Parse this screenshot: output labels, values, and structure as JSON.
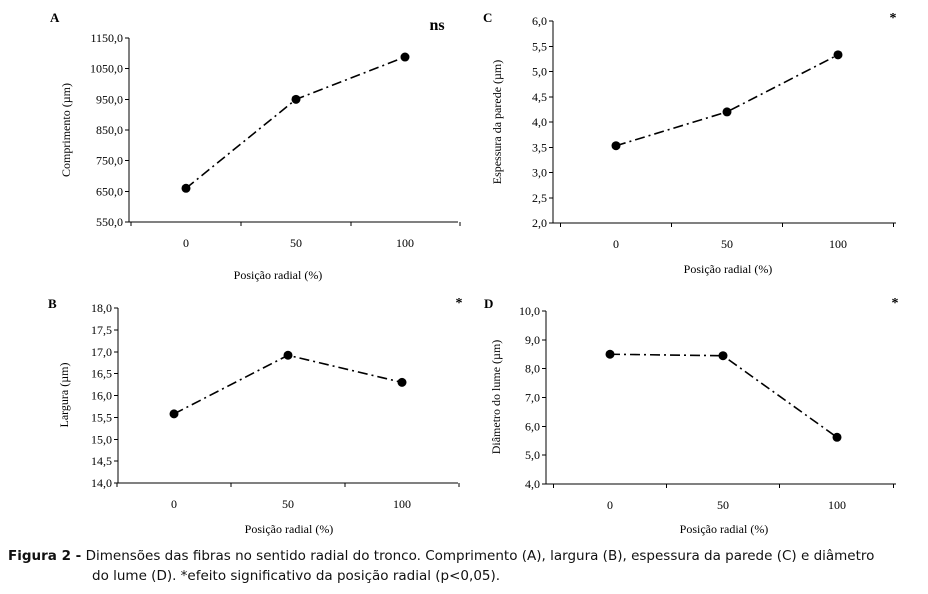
{
  "chart_data": [
    {
      "panel": "A",
      "type": "line",
      "significance": "ns",
      "x": [
        "0",
        "50",
        "100"
      ],
      "y_ticks": [
        "550,0",
        "650,0",
        "750,0",
        "850,0",
        "950,0",
        "1050,0",
        "1150,0"
      ],
      "ylim": [
        550,
        1150
      ],
      "values": [
        660,
        950,
        1088
      ],
      "xlabel": "Posição radial (%)",
      "ylabel": "Comprimento (µm)"
    },
    {
      "panel": "B",
      "type": "line",
      "significance": "*",
      "x": [
        "0",
        "50",
        "100"
      ],
      "y_ticks": [
        "14,0",
        "14,5",
        "15,0",
        "15,5",
        "16,0",
        "16,5",
        "17,0",
        "17,5",
        "18,0"
      ],
      "ylim": [
        14,
        18
      ],
      "values": [
        15.58,
        16.92,
        16.3
      ],
      "xlabel": "Posição radial (%)",
      "ylabel": "Largura (µm)"
    },
    {
      "panel": "C",
      "type": "line",
      "significance": "*",
      "x": [
        "0",
        "50",
        "100"
      ],
      "y_ticks": [
        "2,0",
        "2,5",
        "3,0",
        "3,5",
        "4,0",
        "4,5",
        "5,0",
        "5,5",
        "6,0"
      ],
      "ylim": [
        2,
        6
      ],
      "values": [
        3.53,
        4.2,
        5.33
      ],
      "xlabel": "Posição radial (%)",
      "ylabel": "Espessura da parede (µm)"
    },
    {
      "panel": "D",
      "type": "line",
      "significance": "*",
      "x": [
        "0",
        "50",
        "100"
      ],
      "y_ticks": [
        "4,0",
        "5,0",
        "6,0",
        "7,0",
        "8,0",
        "9,0",
        "10,0"
      ],
      "ylim": [
        4,
        10
      ],
      "values": [
        8.5,
        8.45,
        5.62
      ],
      "xlabel": "Posição radial (%)",
      "ylabel": "Diâmetro do lume (µm)"
    }
  ],
  "caption": {
    "lead": "Figura 2 -",
    "text1": "Dimensões das fibras no sentido radial do tronco. Comprimento (A), largura (B), espessura da parede (C) e diâmetro",
    "text2": "do lume (D). *efeito significativo da posição radial (p<0,05)."
  }
}
